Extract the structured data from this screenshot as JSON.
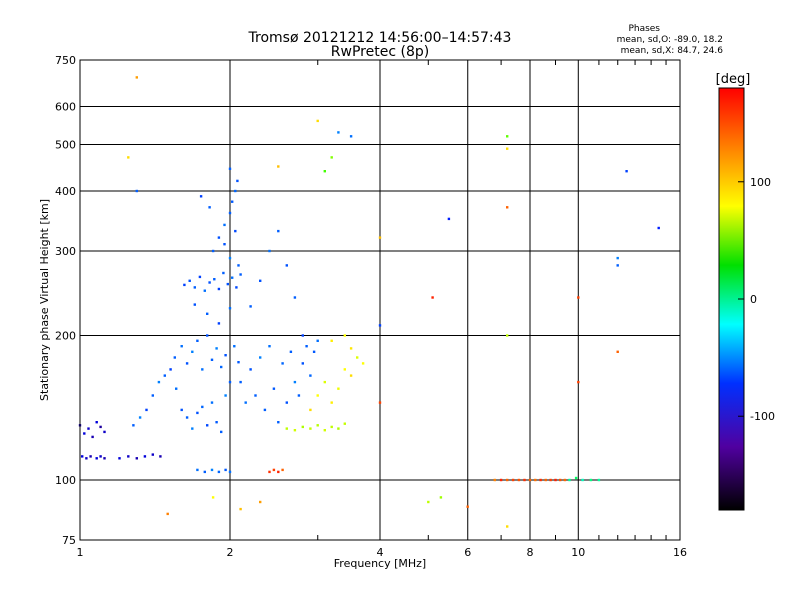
{
  "chart_data": {
    "type": "scatter",
    "title": "Tromsø 20121212 14:56:00–14:57:43",
    "subtitle": "RwPretec (8p)",
    "phase_box": {
      "heading": "Phases",
      "line_o": "mean, sd,O: -89.0, 18.2",
      "line_x": "mean, sd,X: 84.7, 24.6"
    },
    "xlabel": "Frequency [MHz]",
    "ylabel": "Stationary phase Virtual Height [km]",
    "xscale": "log",
    "yscale": "log",
    "xlim": [
      1,
      16
    ],
    "ylim": [
      75,
      750
    ],
    "xticks": [
      1,
      2,
      4,
      6,
      8,
      10,
      16
    ],
    "yticks": [
      75,
      100,
      200,
      300,
      400,
      500,
      600,
      750
    ],
    "x_minor_ticks": [
      3,
      5,
      7,
      9,
      11,
      12,
      13,
      14,
      15
    ],
    "grid": true,
    "colorbar": {
      "label": "[deg]",
      "range": [
        -180,
        180
      ],
      "ticks": [
        100,
        0,
        -100
      ]
    },
    "series": [
      {
        "points": [
          [
            1.0,
            130,
            -150
          ],
          [
            1.02,
            125,
            -140
          ],
          [
            1.04,
            128,
            -145
          ],
          [
            1.06,
            123,
            -150
          ],
          [
            1.08,
            132,
            -140
          ],
          [
            1.1,
            129,
            -155
          ],
          [
            1.12,
            126,
            -145
          ],
          [
            1.01,
            112,
            -140
          ],
          [
            1.03,
            111,
            -145
          ],
          [
            1.05,
            112,
            -150
          ],
          [
            1.08,
            111,
            -140
          ],
          [
            1.1,
            112,
            -145
          ],
          [
            1.12,
            111,
            -150
          ],
          [
            1.2,
            111,
            -140
          ],
          [
            1.25,
            112,
            -145
          ],
          [
            1.3,
            111,
            -150
          ],
          [
            1.35,
            112,
            -140
          ],
          [
            1.4,
            113,
            -145
          ],
          [
            1.45,
            112,
            -150
          ],
          [
            1.28,
            130,
            -110
          ],
          [
            1.32,
            135,
            -100
          ],
          [
            1.36,
            140,
            -120
          ],
          [
            1.4,
            150,
            -110
          ],
          [
            1.44,
            160,
            -100
          ],
          [
            1.48,
            165,
            -110
          ],
          [
            1.52,
            170,
            -120
          ],
          [
            1.56,
            155,
            -105
          ],
          [
            1.6,
            140,
            -115
          ],
          [
            1.64,
            135,
            -110
          ],
          [
            1.68,
            128,
            -100
          ],
          [
            1.72,
            138,
            -115
          ],
          [
            1.76,
            142,
            -108
          ],
          [
            1.8,
            130,
            -118
          ],
          [
            1.84,
            145,
            -105
          ],
          [
            1.88,
            132,
            -112
          ],
          [
            1.92,
            126,
            -110
          ],
          [
            1.96,
            150,
            -100
          ],
          [
            1.55,
            180,
            -110
          ],
          [
            1.6,
            190,
            -105
          ],
          [
            1.64,
            175,
            -115
          ],
          [
            1.68,
            185,
            -100
          ],
          [
            1.72,
            195,
            -110
          ],
          [
            1.76,
            170,
            -105
          ],
          [
            1.8,
            200,
            -115
          ],
          [
            1.84,
            178,
            -110
          ],
          [
            1.88,
            188,
            -100
          ],
          [
            1.92,
            172,
            -108
          ],
          [
            1.96,
            182,
            -115
          ],
          [
            2.0,
            160,
            -110
          ],
          [
            2.04,
            190,
            -105
          ],
          [
            2.08,
            176,
            -112
          ],
          [
            1.62,
            255,
            -120
          ],
          [
            1.66,
            260,
            -115
          ],
          [
            1.7,
            252,
            -110
          ],
          [
            1.74,
            265,
            -120
          ],
          [
            1.78,
            248,
            -105
          ],
          [
            1.82,
            258,
            -115
          ],
          [
            1.86,
            262,
            -110
          ],
          [
            1.9,
            250,
            -120
          ],
          [
            1.94,
            270,
            -110
          ],
          [
            1.98,
            256,
            -115
          ],
          [
            2.02,
            264,
            -105
          ],
          [
            2.06,
            252,
            -118
          ],
          [
            2.1,
            268,
            -110
          ],
          [
            1.7,
            232,
            -115
          ],
          [
            1.8,
            222,
            -110
          ],
          [
            1.9,
            212,
            -120
          ],
          [
            2.0,
            228,
            -105
          ],
          [
            1.85,
            300,
            -110
          ],
          [
            1.9,
            320,
            -115
          ],
          [
            1.95,
            340,
            -105
          ],
          [
            2.0,
            360,
            -110
          ],
          [
            2.02,
            380,
            -112
          ],
          [
            2.05,
            400,
            -108
          ],
          [
            2.07,
            420,
            -115
          ],
          [
            2.0,
            445,
            -110
          ],
          [
            1.75,
            390,
            -120
          ],
          [
            1.82,
            370,
            -110
          ],
          [
            1.95,
            310,
            -115
          ],
          [
            2.0,
            290,
            -100
          ],
          [
            2.05,
            330,
            -118
          ],
          [
            2.08,
            280,
            -110
          ],
          [
            2.1,
            160,
            -110
          ],
          [
            2.15,
            145,
            -105
          ],
          [
            2.2,
            170,
            -115
          ],
          [
            2.25,
            150,
            -110
          ],
          [
            2.3,
            180,
            -100
          ],
          [
            2.35,
            140,
            -110
          ],
          [
            2.4,
            190,
            -105
          ],
          [
            2.45,
            155,
            -112
          ],
          [
            2.5,
            132,
            -110
          ],
          [
            2.55,
            175,
            -108
          ],
          [
            2.6,
            145,
            -115
          ],
          [
            2.65,
            185,
            -110
          ],
          [
            2.7,
            160,
            -100
          ],
          [
            2.75,
            150,
            -110
          ],
          [
            2.8,
            175,
            -115
          ],
          [
            2.85,
            190,
            -110
          ],
          [
            2.9,
            165,
            -108
          ],
          [
            2.95,
            185,
            -112
          ],
          [
            3.0,
            195,
            -105
          ],
          [
            2.2,
            230,
            -110
          ],
          [
            2.3,
            260,
            -115
          ],
          [
            2.4,
            300,
            -105
          ],
          [
            2.5,
            330,
            -110
          ],
          [
            2.6,
            280,
            -115
          ],
          [
            2.7,
            240,
            -110
          ],
          [
            2.8,
            200,
            -120
          ],
          [
            1.72,
            105,
            -105
          ],
          [
            1.78,
            104,
            -110
          ],
          [
            1.84,
            105,
            -100
          ],
          [
            1.9,
            104,
            -108
          ],
          [
            1.96,
            105,
            -112
          ],
          [
            2.0,
            104,
            -105
          ],
          [
            2.6,
            128,
            80
          ],
          [
            2.7,
            127,
            85
          ],
          [
            2.8,
            129,
            75
          ],
          [
            2.9,
            128,
            82
          ],
          [
            3.0,
            130,
            78
          ],
          [
            3.1,
            127,
            85
          ],
          [
            3.2,
            129,
            80
          ],
          [
            3.3,
            128,
            75
          ],
          [
            3.4,
            131,
            82
          ],
          [
            2.9,
            140,
            110
          ],
          [
            3.0,
            150,
            100
          ],
          [
            3.1,
            160,
            90
          ],
          [
            3.2,
            145,
            105
          ],
          [
            3.3,
            155,
            95
          ],
          [
            3.4,
            170,
            100
          ],
          [
            3.5,
            165,
            110
          ],
          [
            3.6,
            180,
            90
          ],
          [
            3.7,
            175,
            100
          ],
          [
            3.2,
            195,
            105
          ],
          [
            3.4,
            200,
            100
          ],
          [
            3.5,
            188,
            108
          ],
          [
            2.4,
            104,
            165
          ],
          [
            2.45,
            105,
            160
          ],
          [
            2.5,
            104,
            170
          ],
          [
            2.55,
            105,
            150
          ],
          [
            6.8,
            100,
            140
          ],
          [
            7.0,
            100,
            170
          ],
          [
            7.2,
            100,
            150
          ],
          [
            7.4,
            100,
            160
          ],
          [
            7.6,
            100,
            155
          ],
          [
            7.8,
            100,
            165
          ],
          [
            8.0,
            100,
            150
          ],
          [
            8.2,
            100,
            145
          ],
          [
            8.4,
            100,
            165
          ],
          [
            8.6,
            100,
            150
          ],
          [
            8.8,
            100,
            160
          ],
          [
            9.0,
            100,
            170
          ],
          [
            9.2,
            100,
            155
          ],
          [
            9.4,
            100,
            148
          ],
          [
            9.6,
            100,
            -30
          ],
          [
            9.9,
            101,
            -10
          ],
          [
            10.2,
            100,
            -40
          ],
          [
            10.6,
            100,
            -20
          ],
          [
            11.0,
            100,
            -30
          ],
          [
            1.3,
            690,
            130
          ],
          [
            1.25,
            470,
            110
          ],
          [
            1.3,
            400,
            -110
          ],
          [
            2.5,
            450,
            120
          ],
          [
            3.0,
            560,
            110
          ],
          [
            3.3,
            530,
            -100
          ],
          [
            3.5,
            520,
            -105
          ],
          [
            3.2,
            470,
            60
          ],
          [
            3.1,
            440,
            40
          ],
          [
            7.2,
            520,
            50
          ],
          [
            7.2,
            490,
            110
          ],
          [
            7.2,
            370,
            150
          ],
          [
            5.5,
            350,
            -130
          ],
          [
            14.5,
            335,
            -130
          ],
          [
            12.5,
            440,
            -120
          ],
          [
            12.0,
            280,
            -110
          ],
          [
            12.0,
            290,
            -100
          ],
          [
            10.0,
            240,
            160
          ],
          [
            12.0,
            185,
            150
          ],
          [
            10.0,
            160,
            160
          ],
          [
            7.2,
            200,
            80
          ],
          [
            5.1,
            240,
            170
          ],
          [
            4.0,
            210,
            -120
          ],
          [
            4.0,
            145,
            160
          ],
          [
            4.0,
            320,
            120
          ],
          [
            1.5,
            85,
            140
          ],
          [
            2.1,
            87,
            120
          ],
          [
            5.0,
            90,
            80
          ],
          [
            5.3,
            92,
            70
          ],
          [
            6.0,
            88,
            150
          ],
          [
            7.2,
            80,
            110
          ],
          [
            1.85,
            92,
            100
          ],
          [
            2.3,
            90,
            130
          ]
        ]
      }
    ]
  }
}
